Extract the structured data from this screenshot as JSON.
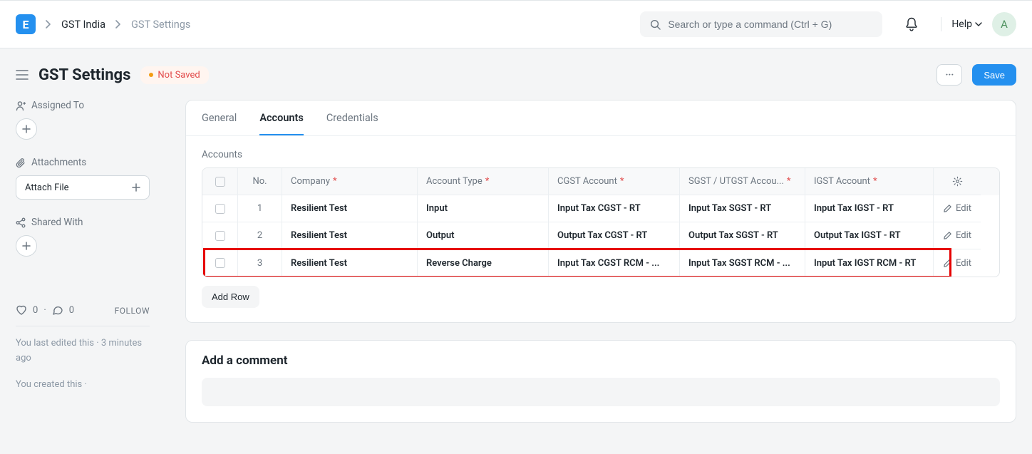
{
  "topbar": {
    "logo_letter": "E",
    "breadcrumb": {
      "parent": "GST India",
      "current": "GST Settings"
    },
    "search_placeholder": "Search or type a command (Ctrl + G)",
    "help_label": "Help",
    "avatar_letter": "A"
  },
  "page": {
    "title": "GST Settings",
    "status_label": "Not Saved",
    "save_label": "Save"
  },
  "sidebar": {
    "assigned_to_label": "Assigned To",
    "attachments_label": "Attachments",
    "attach_file_label": "Attach File",
    "shared_with_label": "Shared With",
    "like_count": "0",
    "comment_count": "0",
    "follow_label": "FOLLOW",
    "edited_meta": "You last edited this · 3 minutes ago",
    "created_meta": "You created this ·"
  },
  "tabs": [
    {
      "label": "General",
      "active": false
    },
    {
      "label": "Accounts",
      "active": true
    },
    {
      "label": "Credentials",
      "active": false
    }
  ],
  "accounts": {
    "section_label": "Accounts",
    "columns": {
      "no": "No.",
      "company": "Company",
      "account_type": "Account Type",
      "cgst": "CGST Account",
      "sgst": "SGST / UTGST Accou...",
      "igst": "IGST Account",
      "edit": "Edit"
    },
    "rows": [
      {
        "no": "1",
        "company": "Resilient Test",
        "type": "Input",
        "cgst": "Input Tax CGST - RT",
        "sgst": "Input Tax SGST - RT",
        "igst": "Input Tax IGST - RT",
        "highlight": false
      },
      {
        "no": "2",
        "company": "Resilient Test",
        "type": "Output",
        "cgst": "Output Tax CGST - RT",
        "sgst": "Output Tax SGST - RT",
        "igst": "Output Tax IGST - RT",
        "highlight": false
      },
      {
        "no": "3",
        "company": "Resilient Test",
        "type": "Reverse Charge",
        "cgst": "Input Tax CGST RCM - ...",
        "sgst": "Input Tax SGST RCM - ...",
        "igst": "Input Tax IGST RCM - RT",
        "highlight": true
      }
    ],
    "add_row_label": "Add Row"
  },
  "comment": {
    "title": "Add a comment"
  },
  "colors": {
    "primary": "#2490ef",
    "border": "#e2e6e9",
    "muted": "#6c7680",
    "bg": "#f4f5f6",
    "danger": "#e24c4c",
    "highlight": "#e60000"
  }
}
